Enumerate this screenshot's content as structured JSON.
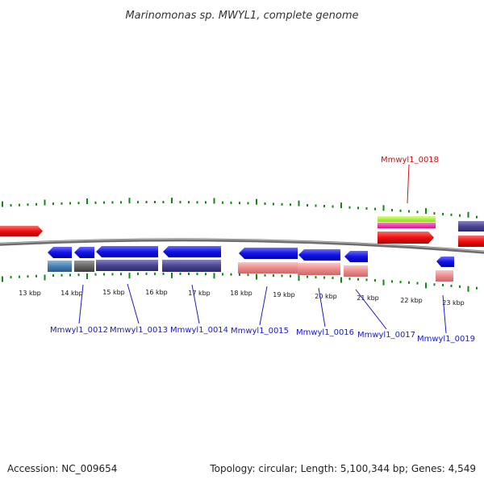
{
  "title": "Marinomonas sp. MWYL1, complete genome",
  "footer": {
    "accession": "Accession: NC_009654",
    "summary": "Topology: circular; Length: 5,100,344 bp; Genes: 4,549"
  },
  "colors": {
    "forward_cds": "#e81010",
    "reverse_cds": "#1414e6",
    "backbone": "#808080",
    "tick": "#118811",
    "label_blue": "#1a1acc",
    "label_red": "#cc1111"
  },
  "scale": {
    "unit": "kbp",
    "tick_labels": [
      "13 kbp",
      "14 kbp",
      "15 kbp",
      "16 kbp",
      "17 kbp",
      "18 kbp",
      "19 kbp",
      "20 kbp",
      "21 kbp",
      "22 kbp",
      "23 kbp"
    ]
  },
  "gene_labels": [
    "Mmwyl1_0012",
    "Mmwyl1_0013",
    "Mmwyl1_0014",
    "Mmwyl1_0015",
    "Mmwyl1_0016",
    "Mmwyl1_0017",
    "Mmwyl1_0018",
    "Mmwyl1_0019"
  ]
}
